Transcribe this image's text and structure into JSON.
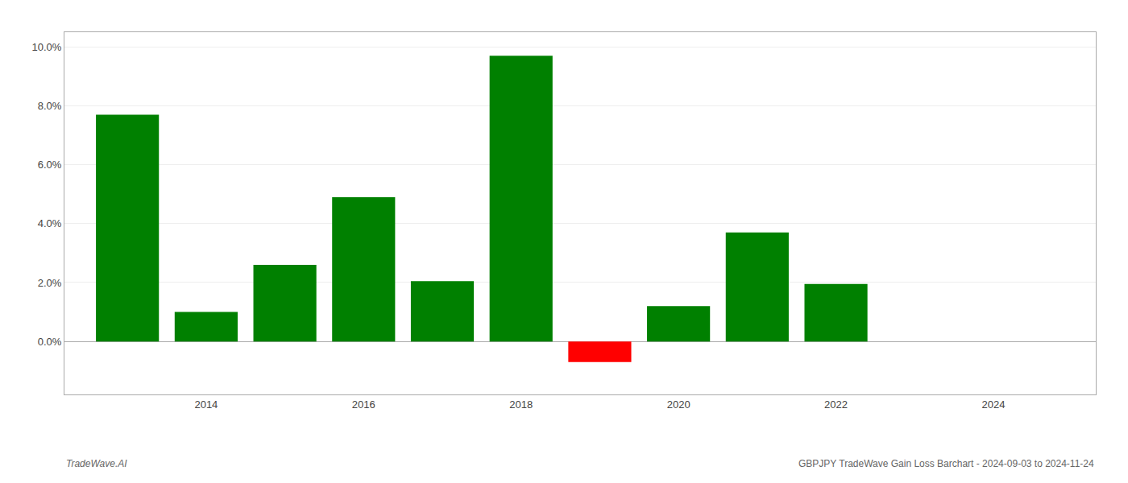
{
  "chart_data": {
    "type": "bar",
    "x": [
      2013,
      2014,
      2015,
      2016,
      2017,
      2018,
      2019,
      2020,
      2021,
      2022
    ],
    "values": [
      0.077,
      0.01,
      0.026,
      0.049,
      0.0205,
      0.097,
      -0.007,
      0.012,
      0.037,
      0.0195
    ],
    "colors": [
      "#008000",
      "#008000",
      "#008000",
      "#008000",
      "#008000",
      "#008000",
      "#ff0000",
      "#008000",
      "#008000",
      "#008000"
    ],
    "xlim": [
      2012.2,
      2025.3
    ],
    "xticks": [
      2014,
      2016,
      2018,
      2020,
      2022,
      2024
    ],
    "ylim": [
      -0.018,
      0.105
    ],
    "yticks": [
      {
        "value": 0.0,
        "label": "0.0%"
      },
      {
        "value": 0.02,
        "label": "2.0%"
      },
      {
        "value": 0.04,
        "label": "4.0%"
      },
      {
        "value": 0.06,
        "label": "6.0%"
      },
      {
        "value": 0.08,
        "label": "8.0%"
      },
      {
        "value": 0.1,
        "label": "10.0%"
      }
    ],
    "grid": "y",
    "annotations": [
      "TradeWave.AI",
      "GBPJPY TradeWave Gain Loss Barchart - 2024-09-03 to 2024-11-24"
    ]
  }
}
